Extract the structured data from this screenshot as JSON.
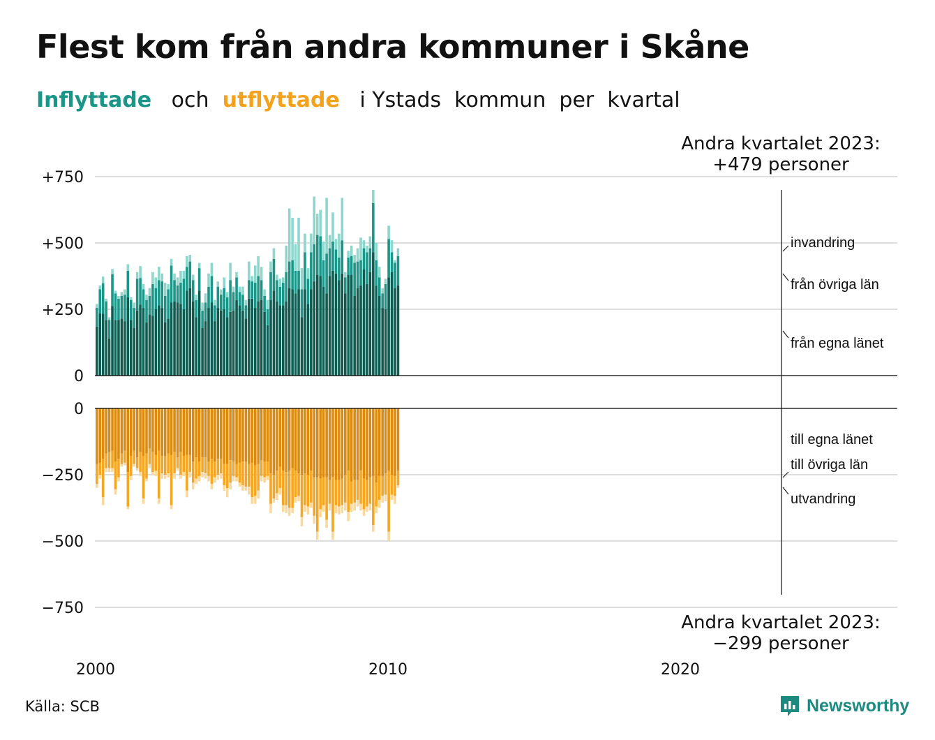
{
  "title": "Flest kom från andra kommuner i Skåne",
  "subtitle": {
    "in_word": "Inflyttade",
    "and_word": "och",
    "out_word": "utflyttade",
    "rest": "i Ystads  kommun  per  kvartal"
  },
  "source": "Källa: SCB",
  "brand": "Newsworthy",
  "colors": {
    "in_own": "#0e5c52",
    "in_other": "#1b9688",
    "in_immig": "#8fd6cc",
    "out_own": "#dc8a10",
    "out_other": "#f5a623",
    "out_emig": "#f8d9a0",
    "grid": "#dddddd",
    "axis": "#000000"
  },
  "chart_data": [
    {
      "type": "bar",
      "stacked": true,
      "name": "Inflyttade",
      "ylim": [
        0,
        750
      ],
      "yticks": [
        0,
        250,
        500,
        750
      ],
      "ytick_labels": [
        "0",
        "+250",
        "+500",
        "+750"
      ],
      "x_start": "2000 Q1",
      "x_end": "2023 Q2",
      "xtick_labels": [
        "2000",
        "2010",
        "2020"
      ],
      "annotation": {
        "line1": "Andra kvartalet 2023:",
        "line2": "+479 personer"
      },
      "series_labels": [
        "invandring",
        "från övriga län",
        "från egna länet"
      ],
      "series": [
        {
          "name": "från egna länet",
          "values": [
            185,
            235,
            233,
            210,
            140,
            262,
            210,
            210,
            215,
            205,
            295,
            210,
            180,
            245,
            268,
            255,
            200,
            230,
            225,
            250,
            265,
            255,
            200,
            215,
            275,
            280,
            275,
            270,
            250,
            320,
            330,
            280,
            220,
            320,
            180,
            205,
            255,
            275,
            205,
            255,
            245,
            250,
            220,
            240,
            245,
            285,
            265,
            245,
            215,
            290,
            290,
            255,
            280,
            285,
            240,
            190,
            285,
            320,
            280,
            265,
            265,
            280,
            330,
            325,
            310,
            325,
            220,
            325,
            270,
            325,
            355,
            380,
            375,
            335,
            310,
            375,
            395,
            385,
            360,
            385,
            310,
            380,
            380,
            300,
            330,
            340,
            400,
            345,
            390,
            465,
            340,
            300,
            255,
            250,
            370,
            390,
            330,
            340
          ]
        },
        {
          "name": "från övriga län",
          "values": [
            70,
            90,
            115,
            70,
            70,
            120,
            100,
            80,
            85,
            100,
            100,
            75,
            75,
            120,
            100,
            70,
            85,
            70,
            120,
            80,
            95,
            100,
            100,
            110,
            140,
            80,
            65,
            80,
            115,
            90,
            100,
            80,
            65,
            85,
            65,
            70,
            80,
            100,
            60,
            80,
            60,
            80,
            75,
            120,
            70,
            85,
            50,
            60,
            50,
            70,
            65,
            95,
            95,
            75,
            60,
            60,
            105,
            120,
            80,
            70,
            85,
            110,
            100,
            110,
            85,
            70,
            105,
            140,
            95,
            140,
            140,
            150,
            150,
            100,
            150,
            105,
            110,
            90,
            85,
            125,
            60,
            65,
            70,
            125,
            100,
            95,
            80,
            120,
            90,
            185,
            95,
            70,
            55,
            95,
            145,
            75,
            95,
            110
          ]
        },
        {
          "name": "invandring",
          "values": [
            15,
            15,
            25,
            10,
            10,
            20,
            10,
            10,
            15,
            20,
            25,
            10,
            20,
            25,
            45,
            20,
            20,
            30,
            45,
            40,
            50,
            30,
            50,
            20,
            25,
            25,
            30,
            45,
            30,
            40,
            25,
            20,
            20,
            20,
            30,
            35,
            50,
            50,
            20,
            20,
            20,
            40,
            20,
            65,
            20,
            20,
            20,
            30,
            20,
            70,
            20,
            65,
            75,
            50,
            25,
            35,
            40,
            40,
            20,
            30,
            20,
            100,
            200,
            160,
            100,
            200,
            80,
            70,
            40,
            70,
            180,
            80,
            100,
            70,
            210,
            50,
            110,
            40,
            90,
            160,
            20,
            25,
            40,
            30,
            50,
            85,
            30,
            25,
            45,
            50,
            65,
            40,
            20,
            20,
            50,
            45,
            10,
            30
          ]
        }
      ]
    },
    {
      "type": "bar",
      "stacked": true,
      "name": "Utflyttade",
      "ylim": [
        -750,
        0
      ],
      "yticks": [
        0,
        -250,
        -500,
        -750
      ],
      "ytick_labels": [
        "0",
        "−250",
        "−500",
        "−750"
      ],
      "annotation": {
        "line1": "Andra kvartalet 2023:",
        "line2": "−299 personer"
      },
      "series_labels": [
        "till egna länet",
        "till övriga län",
        "utvandring"
      ],
      "series": [
        {
          "name": "till egna länet",
          "values": [
            -210,
            -205,
            -190,
            -170,
            -165,
            -160,
            -200,
            -190,
            -170,
            -160,
            -240,
            -180,
            -160,
            -185,
            -165,
            -180,
            -170,
            -150,
            -165,
            -175,
            -160,
            -180,
            -180,
            -170,
            -175,
            -165,
            -185,
            -165,
            -180,
            -175,
            -175,
            -200,
            -185,
            -200,
            -185,
            -185,
            -200,
            -190,
            -200,
            -190,
            -190,
            -210,
            -210,
            -195,
            -200,
            -210,
            -205,
            -200,
            -200,
            -210,
            -205,
            -215,
            -210,
            -195,
            -200,
            -200,
            -245,
            -250,
            -235,
            -220,
            -235,
            -240,
            -235,
            -225,
            -235,
            -245,
            -250,
            -245,
            -250,
            -235,
            -260,
            -260,
            -265,
            -260,
            -260,
            -270,
            -260,
            -270,
            -270,
            -265,
            -250,
            -235,
            -275,
            -270,
            -270,
            -235,
            -265,
            -270,
            -260,
            -255,
            -280,
            -255,
            -255,
            -245,
            -235,
            -250,
            -255,
            -235
          ]
        },
        {
          "name": "till övriga län",
          "values": [
            -75,
            -45,
            -145,
            -55,
            -60,
            -65,
            -105,
            -70,
            -40,
            -45,
            -130,
            -75,
            -50,
            -40,
            -75,
            -160,
            -95,
            -60,
            -75,
            -60,
            -180,
            -65,
            -70,
            -75,
            -190,
            -80,
            -40,
            -85,
            -60,
            -135,
            -65,
            -80,
            -80,
            -55,
            -55,
            -60,
            -55,
            -95,
            -60,
            -60,
            -55,
            -80,
            -90,
            -85,
            -55,
            -50,
            -75,
            -90,
            -95,
            -85,
            -130,
            -115,
            -100,
            -60,
            -60,
            -55,
            -115,
            -90,
            -85,
            -80,
            -130,
            -125,
            -140,
            -150,
            -100,
            -85,
            -160,
            -120,
            -120,
            -120,
            -145,
            -205,
            -115,
            -105,
            -160,
            -90,
            -205,
            -95,
            -100,
            -100,
            -105,
            -155,
            -85,
            -85,
            -75,
            -125,
            -115,
            -100,
            -100,
            -185,
            -90,
            -90,
            -75,
            -80,
            -230,
            -75,
            -75,
            -55
          ]
        },
        {
          "name": "utvandring",
          "values": [
            -15,
            -15,
            -30,
            -15,
            -15,
            -15,
            -20,
            -15,
            -10,
            -10,
            -10,
            -15,
            -10,
            -10,
            -15,
            -20,
            -10,
            -15,
            -10,
            -20,
            -20,
            -20,
            -15,
            -15,
            -15,
            -20,
            -10,
            -15,
            -15,
            -25,
            -20,
            -25,
            -20,
            -20,
            -20,
            -20,
            -20,
            -20,
            -20,
            -20,
            -20,
            -20,
            -35,
            -25,
            -20,
            -15,
            -15,
            -20,
            -15,
            -30,
            -25,
            -30,
            -30,
            -20,
            -20,
            -15,
            -35,
            -15,
            -25,
            -25,
            -25,
            -30,
            -30,
            -20,
            -20,
            -20,
            -35,
            -25,
            -30,
            -20,
            -30,
            -30,
            -30,
            -25,
            -30,
            -25,
            -30,
            -30,
            -30,
            -30,
            -30,
            -35,
            -30,
            -30,
            -25,
            -25,
            -25,
            -20,
            -25,
            -25,
            -25,
            -30,
            -25,
            -25,
            -35,
            -20,
            -30,
            -10
          ]
        }
      ]
    }
  ]
}
